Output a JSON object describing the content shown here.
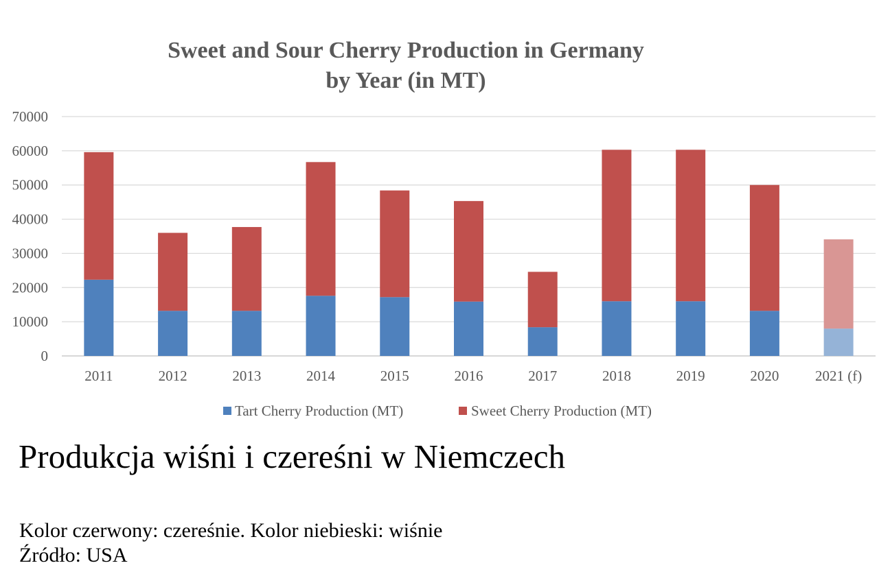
{
  "chart_data": {
    "type": "bar",
    "stacked": true,
    "title_lines": [
      "Sweet and Sour Cherry Production in Germany",
      "by Year (in MT)"
    ],
    "categories": [
      "2011",
      "2012",
      "2013",
      "2014",
      "2015",
      "2016",
      "2017",
      "2018",
      "2019",
      "2020",
      "2021 (f)"
    ],
    "forecast_index": 10,
    "series": [
      {
        "name": "Tart Cherry Production (MT)",
        "color": "#4f81bd",
        "forecast_color": "#95b3d7",
        "values": [
          22300,
          13200,
          13200,
          17600,
          17200,
          15900,
          8400,
          16000,
          16000,
          13200,
          8000
        ]
      },
      {
        "name": "Sweet Cherry Production (MT)",
        "color": "#c0504d",
        "forecast_color": "#d99694",
        "values": [
          37300,
          22800,
          24500,
          39100,
          31200,
          29400,
          16200,
          44300,
          44300,
          36800,
          26100
        ]
      }
    ],
    "ylim": [
      0,
      70000
    ],
    "yticks": [
      "0",
      "10000",
      "20000",
      "30000",
      "40000",
      "50000",
      "60000",
      "70000"
    ],
    "grid": true,
    "legend_position": "bottom"
  },
  "caption": {
    "headline": "Produkcja wiśni i czereśni w Niemczech",
    "color_note": "Kolor czerwony: czereśnie. Kolor niebieski: wiśnie",
    "source": "Źródło: USA"
  }
}
